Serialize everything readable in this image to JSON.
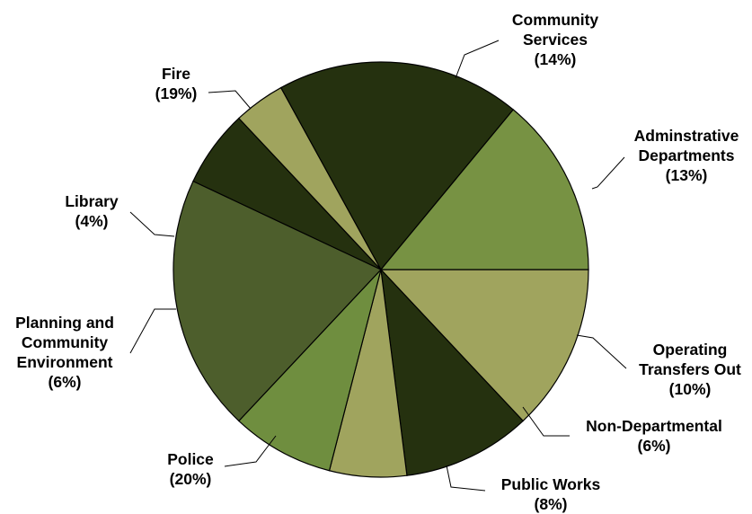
{
  "chart_data": {
    "type": "pie",
    "title": "",
    "legend": "none",
    "slices": [
      {
        "lines": [
          "Adminstrative",
          "Departments",
          "(13%)"
        ],
        "label": "Adminstrative Departments",
        "pct_label": "(13%)",
        "value": 13,
        "color": "#a0a45e"
      },
      {
        "lines": [
          "Operating",
          "Transfers Out",
          "(10%)"
        ],
        "label": "Operating Transfers Out",
        "pct_label": "(10%)",
        "value": 10,
        "color": "#25310f"
      },
      {
        "lines": [
          "Non-Departmental",
          "(6%)"
        ],
        "label": "Non-Departmental",
        "pct_label": "(6%)",
        "value": 6,
        "color": "#a0a45e"
      },
      {
        "lines": [
          "Public Works",
          "(8%)"
        ],
        "label": "Public Works",
        "pct_label": "(8%)",
        "value": 8,
        "color": "#6f8e3f"
      },
      {
        "lines": [
          "Police",
          "(20%)"
        ],
        "label": "Police",
        "pct_label": "(20%)",
        "value": 20,
        "color": "#4d5e2c"
      },
      {
        "lines": [
          "Planning and",
          "Community",
          "Environment",
          "(6%)"
        ],
        "label": "Planning and Community Environment",
        "pct_label": "(6%)",
        "value": 6,
        "color": "#25310f"
      },
      {
        "lines": [
          "Library",
          "(4%)"
        ],
        "label": "Library",
        "pct_label": "(4%)",
        "value": 4,
        "color": "#a0a45e"
      },
      {
        "lines": [
          "Fire",
          "(19%)"
        ],
        "label": "Fire",
        "pct_label": "(19%)",
        "value": 19,
        "color": "#25310f"
      },
      {
        "lines": [
          "Community",
          "Services",
          "(14%)"
        ],
        "label": "Community Services",
        "pct_label": "(14%)",
        "value": 14,
        "color": "#779243"
      }
    ]
  }
}
